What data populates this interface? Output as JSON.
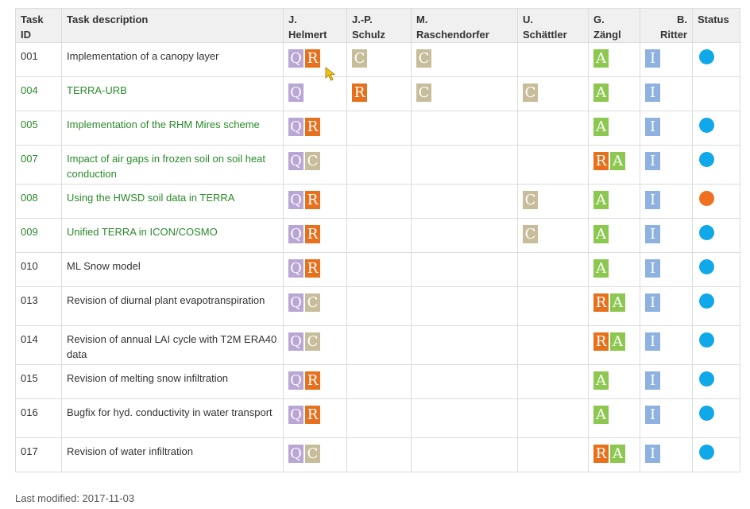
{
  "headers": {
    "task_id": [
      "Task",
      "ID"
    ],
    "description": "Task description",
    "helmert": [
      "J.",
      "Helmert"
    ],
    "schulz": [
      "J.-P.",
      "Schulz"
    ],
    "raschendorfer": [
      "M.",
      "Raschendorfer"
    ],
    "schaettler": [
      "U.",
      "Schättler"
    ],
    "zaengl": [
      "G.",
      "Zängl"
    ],
    "ritter": [
      "B.",
      "Ritter"
    ],
    "status": "Status"
  },
  "rows": [
    {
      "id": "001",
      "desc": "Implementation of a canopy layer",
      "link": false,
      "helmert": [
        "Q",
        "R"
      ],
      "schulz": [
        "C"
      ],
      "raschendorfer": [
        "C"
      ],
      "schaettler": [],
      "zaengl": [
        "A"
      ],
      "ritter": [
        "I"
      ],
      "status": "#10a8e8"
    },
    {
      "id": "004",
      "desc": "TERRA-URB",
      "link": true,
      "helmert": [
        "Q"
      ],
      "schulz": [
        "R"
      ],
      "raschendorfer": [
        "C"
      ],
      "schaettler": [
        "C"
      ],
      "zaengl": [
        "A"
      ],
      "ritter": [
        "I"
      ],
      "status": ""
    },
    {
      "id": "005",
      "desc": "Implementation of the RHM Mires scheme",
      "link": true,
      "helmert": [
        "Q",
        "R"
      ],
      "schulz": [],
      "raschendorfer": [],
      "schaettler": [],
      "zaengl": [
        "A"
      ],
      "ritter": [
        "I"
      ],
      "status": "#10a8e8"
    },
    {
      "id": "007",
      "desc": "Impact of air gaps in frozen soil on soil heat conduction",
      "link": true,
      "helmert": [
        "Q",
        "C"
      ],
      "schulz": [],
      "raschendorfer": [],
      "schaettler": [],
      "zaengl": [
        "R",
        "A"
      ],
      "ritter": [
        "I"
      ],
      "status": "#10a8e8"
    },
    {
      "id": "008",
      "desc": "Using the HWSD soil data in TERRA",
      "link": true,
      "helmert": [
        "Q",
        "R"
      ],
      "schulz": [],
      "raschendorfer": [],
      "schaettler": [
        "C"
      ],
      "zaengl": [
        "A"
      ],
      "ritter": [
        "I"
      ],
      "status": "#f07020"
    },
    {
      "id": "009",
      "desc": "Unified TERRA in ICON/COSMO",
      "link": true,
      "helmert": [
        "Q",
        "R"
      ],
      "schulz": [],
      "raschendorfer": [],
      "schaettler": [
        "C"
      ],
      "zaengl": [
        "A"
      ],
      "ritter": [
        "I"
      ],
      "status": "#10a8e8"
    },
    {
      "id": "010",
      "desc": "ML Snow model",
      "link": false,
      "helmert": [
        "Q",
        "R"
      ],
      "schulz": [],
      "raschendorfer": [],
      "schaettler": [],
      "zaengl": [
        "A"
      ],
      "ritter": [
        "I"
      ],
      "status": "#10a8e8"
    },
    {
      "id": "013",
      "desc": "Revision of diurnal plant evapotranspiration",
      "link": false,
      "helmert": [
        "Q",
        "C"
      ],
      "schulz": [],
      "raschendorfer": [],
      "schaettler": [],
      "zaengl": [
        "R",
        "A"
      ],
      "ritter": [
        "I"
      ],
      "status": "#10a8e8"
    },
    {
      "id": "014",
      "desc": "Revision of annual LAI cycle with T2M ERA40 data",
      "link": false,
      "helmert": [
        "Q",
        "C"
      ],
      "schulz": [],
      "raschendorfer": [],
      "schaettler": [],
      "zaengl": [
        "R",
        "A"
      ],
      "ritter": [
        "I"
      ],
      "status": "#10a8e8"
    },
    {
      "id": "015",
      "desc": "Revision of melting snow infiltration",
      "link": false,
      "helmert": [
        "Q",
        "R"
      ],
      "schulz": [],
      "raschendorfer": [],
      "schaettler": [],
      "zaengl": [
        "A"
      ],
      "ritter": [
        "I"
      ],
      "status": "#10a8e8"
    },
    {
      "id": "016",
      "desc": "Bugfix for hyd. conductivity in water transport",
      "link": false,
      "helmert": [
        "Q",
        "R"
      ],
      "schulz": [],
      "raschendorfer": [],
      "schaettler": [],
      "zaengl": [
        "A"
      ],
      "ritter": [
        "I"
      ],
      "status": "#10a8e8"
    },
    {
      "id": "017",
      "desc": "Revision of water infiltration",
      "link": false,
      "helmert": [
        "Q",
        "C"
      ],
      "schulz": [],
      "raschendorfer": [],
      "schaettler": [],
      "zaengl": [
        "R",
        "A"
      ],
      "ritter": [
        "I"
      ],
      "status": "#10a8e8"
    }
  ],
  "footer": "Last modified: 2017-11-03"
}
